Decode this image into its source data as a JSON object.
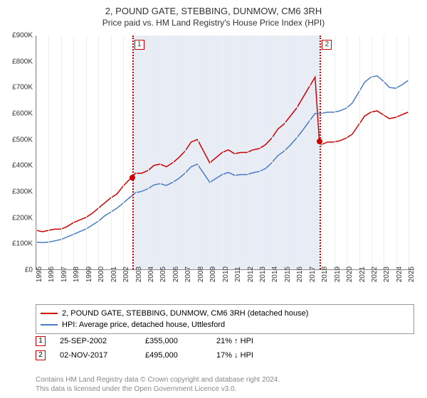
{
  "title": "2, POUND GATE, STEBBING, DUNMOW, CM6 3RH",
  "subtitle": "Price paid vs. HM Land Registry's House Price Index (HPI)",
  "chart": {
    "type": "line",
    "xlim": [
      1995,
      2025.5
    ],
    "ylim": [
      0,
      900000
    ],
    "ytick_step": 100000,
    "y_ticks": [
      "£0",
      "£100K",
      "£200K",
      "£300K",
      "£400K",
      "£500K",
      "£600K",
      "£700K",
      "£800K",
      "£900K"
    ],
    "x_years": [
      1995,
      1996,
      1997,
      1998,
      1999,
      2000,
      2001,
      2002,
      2003,
      2004,
      2005,
      2006,
      2007,
      2008,
      2009,
      2010,
      2011,
      2012,
      2013,
      2014,
      2015,
      2016,
      2017,
      2018,
      2019,
      2020,
      2021,
      2022,
      2023,
      2024,
      2025
    ],
    "background_color": "#ffffff",
    "grid_color": "#eeeeee",
    "shaded_region": {
      "x_start": 2002.73,
      "x_end": 2017.84,
      "color": "#e8edf5"
    },
    "series": [
      {
        "name": "property",
        "color": "#cc0000",
        "width": 1.5,
        "label": "2, POUND GATE, STEBBING, DUNMOW, CM6 3RH (detached house)",
        "points": [
          [
            1995,
            150000
          ],
          [
            1995.5,
            145000
          ],
          [
            1996,
            150000
          ],
          [
            1996.5,
            155000
          ],
          [
            1997,
            155000
          ],
          [
            1997.5,
            165000
          ],
          [
            1998,
            180000
          ],
          [
            1998.5,
            190000
          ],
          [
            1999,
            200000
          ],
          [
            1999.5,
            215000
          ],
          [
            2000,
            235000
          ],
          [
            2000.5,
            255000
          ],
          [
            2001,
            275000
          ],
          [
            2001.5,
            290000
          ],
          [
            2002,
            320000
          ],
          [
            2002.5,
            345000
          ],
          [
            2002.73,
            355000
          ],
          [
            2003,
            370000
          ],
          [
            2003.5,
            370000
          ],
          [
            2004,
            380000
          ],
          [
            2004.5,
            400000
          ],
          [
            2005,
            405000
          ],
          [
            2005.5,
            395000
          ],
          [
            2006,
            410000
          ],
          [
            2006.5,
            430000
          ],
          [
            2007,
            455000
          ],
          [
            2007.5,
            490000
          ],
          [
            2008,
            500000
          ],
          [
            2008.5,
            455000
          ],
          [
            2009,
            410000
          ],
          [
            2009.5,
            430000
          ],
          [
            2010,
            450000
          ],
          [
            2010.5,
            460000
          ],
          [
            2011,
            445000
          ],
          [
            2011.5,
            450000
          ],
          [
            2012,
            450000
          ],
          [
            2012.5,
            460000
          ],
          [
            2013,
            465000
          ],
          [
            2013.5,
            480000
          ],
          [
            2014,
            505000
          ],
          [
            2014.5,
            540000
          ],
          [
            2015,
            560000
          ],
          [
            2015.5,
            590000
          ],
          [
            2016,
            620000
          ],
          [
            2016.5,
            660000
          ],
          [
            2017,
            700000
          ],
          [
            2017.5,
            740000
          ],
          [
            2017.84,
            495000
          ],
          [
            2018,
            480000
          ],
          [
            2018.5,
            490000
          ],
          [
            2019,
            490000
          ],
          [
            2019.5,
            495000
          ],
          [
            2020,
            505000
          ],
          [
            2020.5,
            520000
          ],
          [
            2021,
            555000
          ],
          [
            2021.5,
            590000
          ],
          [
            2022,
            605000
          ],
          [
            2022.5,
            610000
          ],
          [
            2023,
            595000
          ],
          [
            2023.5,
            580000
          ],
          [
            2024,
            585000
          ],
          [
            2024.5,
            595000
          ],
          [
            2025,
            605000
          ]
        ]
      },
      {
        "name": "hpi",
        "color": "#4a7bc4",
        "width": 1.5,
        "label": "HPI: Average price, detached house, Uttlesford",
        "points": [
          [
            1995,
            105000
          ],
          [
            1995.5,
            103000
          ],
          [
            1996,
            105000
          ],
          [
            1996.5,
            110000
          ],
          [
            1997,
            115000
          ],
          [
            1997.5,
            125000
          ],
          [
            1998,
            135000
          ],
          [
            1998.5,
            145000
          ],
          [
            1999,
            155000
          ],
          [
            1999.5,
            170000
          ],
          [
            2000,
            185000
          ],
          [
            2000.5,
            205000
          ],
          [
            2001,
            220000
          ],
          [
            2001.5,
            235000
          ],
          [
            2002,
            255000
          ],
          [
            2002.5,
            275000
          ],
          [
            2003,
            295000
          ],
          [
            2003.5,
            300000
          ],
          [
            2004,
            310000
          ],
          [
            2004.5,
            325000
          ],
          [
            2005,
            330000
          ],
          [
            2005.5,
            323000
          ],
          [
            2006,
            335000
          ],
          [
            2006.5,
            350000
          ],
          [
            2007,
            370000
          ],
          [
            2007.5,
            395000
          ],
          [
            2008,
            405000
          ],
          [
            2008.5,
            370000
          ],
          [
            2009,
            335000
          ],
          [
            2009.5,
            350000
          ],
          [
            2010,
            365000
          ],
          [
            2010.5,
            373000
          ],
          [
            2011,
            362000
          ],
          [
            2011.5,
            365000
          ],
          [
            2012,
            365000
          ],
          [
            2012.5,
            372000
          ],
          [
            2013,
            377000
          ],
          [
            2013.5,
            388000
          ],
          [
            2014,
            410000
          ],
          [
            2014.5,
            438000
          ],
          [
            2015,
            455000
          ],
          [
            2015.5,
            478000
          ],
          [
            2016,
            505000
          ],
          [
            2016.5,
            535000
          ],
          [
            2017,
            568000
          ],
          [
            2017.5,
            600000
          ],
          [
            2018,
            600000
          ],
          [
            2018.5,
            605000
          ],
          [
            2019,
            605000
          ],
          [
            2019.5,
            610000
          ],
          [
            2020,
            620000
          ],
          [
            2020.5,
            640000
          ],
          [
            2021,
            680000
          ],
          [
            2021.5,
            720000
          ],
          [
            2022,
            740000
          ],
          [
            2022.5,
            745000
          ],
          [
            2023,
            725000
          ],
          [
            2023.5,
            700000
          ],
          [
            2024,
            697000
          ],
          [
            2024.5,
            710000
          ],
          [
            2025,
            727000
          ]
        ]
      }
    ],
    "events": [
      {
        "n": "1",
        "date": "25-SEP-2002",
        "x": 2002.73,
        "price_val": 355000,
        "price": "£355,000",
        "delta": "21% ↑ HPI",
        "color": "#cc0000"
      },
      {
        "n": "2",
        "date": "02-NOV-2017",
        "x": 2017.84,
        "price_val": 495000,
        "price": "£495,000",
        "delta": "17% ↓ HPI",
        "color": "#cc0000"
      }
    ]
  },
  "footer": {
    "line1": "Contains HM Land Registry data © Crown copyright and database right 2024.",
    "line2": "This data is licensed under the Open Government Licence v3.0."
  }
}
